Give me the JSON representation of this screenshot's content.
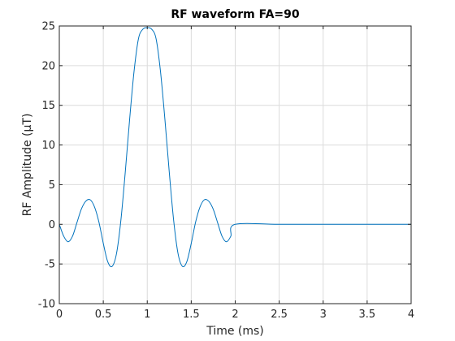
{
  "chart_data": {
    "type": "line",
    "title": "RF waveform FA=90",
    "xlabel": "Time (ms)",
    "ylabel": "RF Amplitude (μT)",
    "xlim": [
      0,
      4
    ],
    "ylim": [
      -10,
      25
    ],
    "x_ticks": [
      0,
      0.5,
      1,
      1.5,
      2,
      2.5,
      3,
      3.5,
      4
    ],
    "x_tick_labels": [
      "0",
      "0.5",
      "1",
      "1.5",
      "2",
      "2.5",
      "3",
      "3.5",
      "4"
    ],
    "y_ticks": [
      -10,
      -5,
      0,
      5,
      10,
      15,
      20,
      25
    ],
    "y_tick_labels": [
      "-10",
      "-5",
      "0",
      "5",
      "10",
      "15",
      "20",
      "25"
    ],
    "grid": true,
    "line_color": "#0072BD",
    "series": [
      {
        "x": [
          0,
          0.05,
          0.1,
          0.15,
          0.2,
          0.25,
          0.3,
          0.35,
          0.4,
          0.45,
          0.5,
          0.55,
          0.6,
          0.65,
          0.7,
          0.75,
          0.8,
          0.85,
          0.9,
          0.95,
          1.0,
          1.05,
          1.1,
          1.15,
          1.2,
          1.25,
          1.3,
          1.35,
          1.4,
          1.45,
          1.5,
          1.55,
          1.6,
          1.65,
          1.7,
          1.75,
          1.8,
          1.85,
          1.9,
          1.95,
          2.0,
          2.5,
          3.0,
          3.5,
          4.0
        ],
        "y": [
          0,
          -1.5,
          -2.2,
          -1.5,
          0.2,
          1.9,
          2.9,
          3.1,
          2.2,
          0.3,
          -2.4,
          -4.7,
          -5.3,
          -3.7,
          0.5,
          6.6,
          13.3,
          19.3,
          23.4,
          24.6,
          24.8,
          24.6,
          23.4,
          19.3,
          13.3,
          6.6,
          0.5,
          -3.7,
          -5.3,
          -4.7,
          -2.4,
          0.3,
          2.2,
          3.1,
          2.9,
          1.9,
          0.2,
          -1.5,
          -2.2,
          -1.5,
          0,
          0,
          0,
          0,
          0
        ]
      }
    ]
  }
}
